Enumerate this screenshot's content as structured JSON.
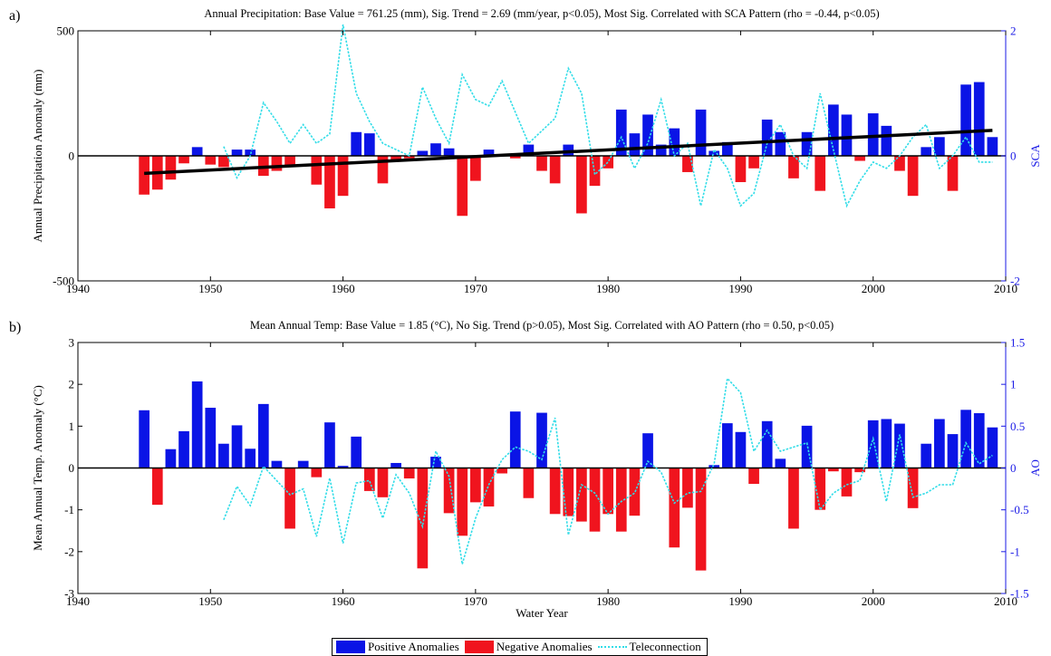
{
  "colors": {
    "positive": "#0a14e6",
    "negative": "#f0141e",
    "teleconnection": "#33dde8",
    "trend": "#000000",
    "right_axis": "#1a1ae6"
  },
  "legend": {
    "positive": "Positive Anomalies",
    "negative": "Negative Anomalies",
    "teleconnection": "Teleconnection"
  },
  "chart_data": [
    {
      "panel_label": "a)",
      "type": "bar",
      "title": "Annual Precipitation: Base Value = 761.25 (mm), Sig. Trend = 2.69 (mm/year, p<0.05), Most Sig. Correlated with SCA Pattern (rho = -0.44, p<0.05)",
      "xlabel": "",
      "ylabel": "Annual Precipitation Anomaly (mm)",
      "y2label": "SCA",
      "xlim": [
        1940,
        2010
      ],
      "ylim": [
        -500,
        500
      ],
      "y2lim": [
        -2,
        2
      ],
      "x_ticks": [
        1940,
        1950,
        1960,
        1970,
        1980,
        1990,
        2000,
        2010
      ],
      "y_ticks": [
        -500,
        0,
        500
      ],
      "y2_ticks": [
        -2,
        0,
        2
      ],
      "grid": false,
      "x": [
        1945,
        1946,
        1947,
        1948,
        1949,
        1950,
        1951,
        1952,
        1953,
        1954,
        1955,
        1956,
        1957,
        1958,
        1959,
        1960,
        1961,
        1962,
        1963,
        1964,
        1965,
        1966,
        1967,
        1968,
        1969,
        1970,
        1971,
        1972,
        1973,
        1974,
        1975,
        1976,
        1977,
        1978,
        1979,
        1980,
        1981,
        1982,
        1983,
        1984,
        1985,
        1986,
        1987,
        1988,
        1989,
        1990,
        1991,
        1992,
        1993,
        1994,
        1995,
        1996,
        1997,
        1998,
        1999,
        2000,
        2001,
        2002,
        2003,
        2004,
        2005,
        2006,
        2007,
        2008,
        2009
      ],
      "values": [
        -155,
        -135,
        -95,
        -30,
        35,
        -35,
        -45,
        25,
        25,
        -80,
        -60,
        -45,
        0,
        -115,
        -210,
        -160,
        95,
        90,
        -110,
        -15,
        -10,
        20,
        50,
        30,
        -240,
        -100,
        25,
        0,
        -10,
        45,
        -60,
        -110,
        45,
        -230,
        -120,
        -50,
        185,
        90,
        165,
        45,
        110,
        -65,
        185,
        20,
        55,
        -105,
        -50,
        145,
        95,
        -90,
        95,
        -140,
        205,
        165,
        -20,
        170,
        120,
        -60,
        -160,
        35,
        75,
        -140,
        285,
        295,
        75
      ],
      "teleconnection": {
        "x": [
          1951,
          1952,
          1953,
          1954,
          1955,
          1956,
          1957,
          1958,
          1959,
          1960,
          1961,
          1962,
          1963,
          1964,
          1965,
          1966,
          1967,
          1968,
          1969,
          1970,
          1971,
          1972,
          1973,
          1974,
          1975,
          1976,
          1977,
          1978,
          1979,
          1980,
          1981,
          1982,
          1983,
          1984,
          1985,
          1986,
          1987,
          1988,
          1989,
          1990,
          1991,
          1992,
          1993,
          1994,
          1995,
          1996,
          1997,
          1998,
          1999,
          2000,
          2001,
          2002,
          2003,
          2004,
          2005,
          2006,
          2007,
          2008,
          2009
        ],
        "values": [
          0.15,
          -0.35,
          0.0,
          0.85,
          0.55,
          0.2,
          0.5,
          0.2,
          0.35,
          2.1,
          1.0,
          0.55,
          0.2,
          0.1,
          0.0,
          1.1,
          0.6,
          0.2,
          1.3,
          0.9,
          0.8,
          1.2,
          0.7,
          0.2,
          0.4,
          0.6,
          1.4,
          1.0,
          -0.3,
          -0.1,
          0.3,
          -0.2,
          0.2,
          0.9,
          0.0,
          0.2,
          -0.8,
          0.1,
          -0.2,
          -0.8,
          -0.6,
          0.2,
          0.5,
          0.0,
          -0.2,
          1.0,
          0.1,
          -0.8,
          -0.4,
          -0.1,
          -0.2,
          0.0,
          0.3,
          0.5,
          -0.2,
          0.0,
          0.3,
          -0.1,
          -0.1
        ]
      },
      "trend": {
        "x": [
          1945,
          2009
        ],
        "values": [
          -70,
          102
        ]
      }
    },
    {
      "panel_label": "b)",
      "type": "bar",
      "title": "Mean Annual Temp: Base Value = 1.85 (°C), No Sig. Trend (p>0.05), Most Sig. Correlated with AO Pattern (rho = 0.50, p<0.05)",
      "xlabel": "Water Year",
      "ylabel": "Mean Annual Temp. Anomaly (°C)",
      "y2label": "AO",
      "xlim": [
        1940,
        2010
      ],
      "ylim": [
        -3,
        3
      ],
      "y2lim": [
        -1.5,
        1.5
      ],
      "x_ticks": [
        1940,
        1950,
        1960,
        1970,
        1980,
        1990,
        2000,
        2010
      ],
      "y_ticks": [
        -3,
        -2,
        -1,
        0,
        1,
        2,
        3
      ],
      "y2_ticks": [
        -1.5,
        -1,
        -0.5,
        0,
        0.5,
        1,
        1.5
      ],
      "grid": false,
      "x": [
        1945,
        1946,
        1947,
        1948,
        1949,
        1950,
        1951,
        1952,
        1953,
        1954,
        1955,
        1956,
        1957,
        1958,
        1959,
        1960,
        1961,
        1962,
        1963,
        1964,
        1965,
        1966,
        1967,
        1968,
        1969,
        1970,
        1971,
        1972,
        1973,
        1974,
        1975,
        1976,
        1977,
        1978,
        1979,
        1980,
        1981,
        1982,
        1983,
        1984,
        1985,
        1986,
        1987,
        1988,
        1989,
        1990,
        1991,
        1992,
        1993,
        1994,
        1995,
        1996,
        1997,
        1998,
        1999,
        2000,
        2001,
        2002,
        2003,
        2004,
        2005,
        2006,
        2007,
        2008,
        2009
      ],
      "values": [
        1.38,
        -0.88,
        0.45,
        0.88,
        2.07,
        1.44,
        0.58,
        1.02,
        0.46,
        1.53,
        0.17,
        -1.45,
        0.17,
        -0.22,
        1.09,
        0.05,
        0.75,
        -0.55,
        -0.7,
        0.12,
        -0.25,
        -2.4,
        0.27,
        -1.08,
        -1.62,
        -0.82,
        -0.92,
        -0.13,
        1.35,
        -0.72,
        1.32,
        -1.1,
        -1.15,
        -1.28,
        -1.52,
        -1.1,
        -1.52,
        -1.14,
        0.83,
        0.0,
        -1.9,
        -0.95,
        -2.45,
        0.07,
        1.07,
        0.86,
        -0.38,
        1.12,
        0.22,
        -1.45,
        1.01,
        -1.0,
        -0.08,
        -0.68,
        -0.1,
        1.14,
        1.17,
        1.06,
        -0.96,
        0.58,
        1.17,
        0.81,
        1.39,
        1.31,
        0.97
      ],
      "teleconnection": {
        "x": [
          1951,
          1952,
          1953,
          1954,
          1955,
          1956,
          1957,
          1958,
          1959,
          1960,
          1961,
          1962,
          1963,
          1964,
          1965,
          1966,
          1967,
          1968,
          1969,
          1970,
          1971,
          1972,
          1973,
          1974,
          1975,
          1976,
          1977,
          1978,
          1979,
          1980,
          1981,
          1982,
          1983,
          1984,
          1985,
          1986,
          1987,
          1988,
          1989,
          1990,
          1991,
          1992,
          1993,
          1994,
          1995,
          1996,
          1997,
          1998,
          1999,
          2000,
          2001,
          2002,
          2003,
          2004,
          2005,
          2006,
          2007,
          2008,
          2009
        ],
        "values": [
          -0.62,
          -0.22,
          -0.45,
          0.02,
          -0.15,
          -0.32,
          -0.25,
          -0.82,
          -0.12,
          -0.9,
          -0.18,
          -0.15,
          -0.6,
          -0.08,
          -0.3,
          -0.7,
          0.2,
          -0.1,
          -1.15,
          -0.6,
          -0.2,
          0.1,
          0.25,
          0.2,
          0.1,
          0.6,
          -0.8,
          -0.2,
          -0.3,
          -0.55,
          -0.4,
          -0.3,
          0.08,
          -0.05,
          -0.42,
          -0.3,
          -0.28,
          0.05,
          1.07,
          0.9,
          0.2,
          0.45,
          0.2,
          0.25,
          0.3,
          -0.5,
          -0.3,
          -0.2,
          -0.15,
          0.35,
          -0.4,
          0.4,
          -0.35,
          -0.3,
          -0.2,
          -0.2,
          0.3,
          0.05,
          0.15
        ]
      }
    }
  ]
}
